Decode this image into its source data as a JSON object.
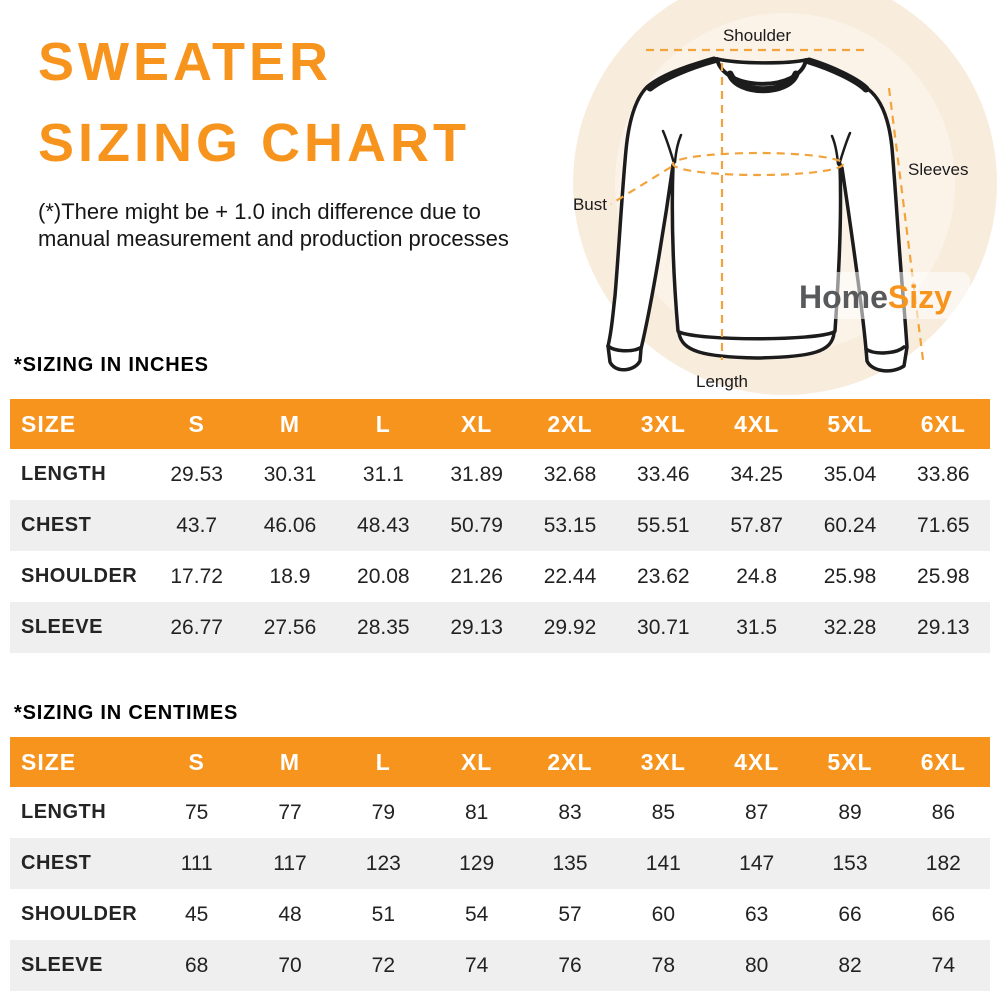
{
  "header": {
    "title_line1": "SWEATER",
    "title_line2": "SIZING CHART",
    "disclaimer_line1": "(*)There might be + 1.0 inch difference due to",
    "disclaimer_line2": "manual measurement and production processes"
  },
  "diagram": {
    "labels": {
      "shoulder": "Shoulder",
      "sleeves": "Sleeves",
      "bust": "Bust",
      "length": "Length"
    },
    "logo": {
      "home": "Home",
      "sizy": "Sizy"
    }
  },
  "colors": {
    "accent_orange": "#F7941D",
    "dashed_line_orange": "#F2A43C",
    "row_alternate_gray": "#EFEFEF",
    "logo_gray": "#58595B",
    "circle_outer_peach": "#F8ECDD",
    "circle_inner_peach": "#FBF2E8",
    "text_dark": "#1f1f1f"
  },
  "tables": [
    {
      "section_title": "*SIZING IN INCHES",
      "columns": [
        "SIZE",
        "S",
        "M",
        "L",
        "XL",
        "2XL",
        "3XL",
        "4XL",
        "5XL",
        "6XL"
      ],
      "rows": [
        {
          "label": "LENGTH",
          "values": [
            "29.53",
            "30.31",
            "31.1",
            "31.89",
            "32.68",
            "33.46",
            "34.25",
            "35.04",
            "33.86"
          ]
        },
        {
          "label": "CHEST",
          "values": [
            "43.7",
            "46.06",
            "48.43",
            "50.79",
            "53.15",
            "55.51",
            "57.87",
            "60.24",
            "71.65"
          ]
        },
        {
          "label": "SHOULDER",
          "values": [
            "17.72",
            "18.9",
            "20.08",
            "21.26",
            "22.44",
            "23.62",
            "24.8",
            "25.98",
            "25.98"
          ]
        },
        {
          "label": "SLEEVE",
          "values": [
            "26.77",
            "27.56",
            "28.35",
            "29.13",
            "29.92",
            "30.71",
            "31.5",
            "32.28",
            "29.13"
          ]
        }
      ]
    },
    {
      "section_title": "*SIZING IN CENTIMES",
      "columns": [
        "SIZE",
        "S",
        "M",
        "L",
        "XL",
        "2XL",
        "3XL",
        "4XL",
        "5XL",
        "6XL"
      ],
      "rows": [
        {
          "label": "LENGTH",
          "values": [
            "75",
            "77",
            "79",
            "81",
            "83",
            "85",
            "87",
            "89",
            "86"
          ]
        },
        {
          "label": "CHEST",
          "values": [
            "111",
            "117",
            "123",
            "129",
            "135",
            "141",
            "147",
            "153",
            "182"
          ]
        },
        {
          "label": "SHOULDER",
          "values": [
            "45",
            "48",
            "51",
            "54",
            "57",
            "60",
            "63",
            "66",
            "66"
          ]
        },
        {
          "label": "SLEEVE",
          "values": [
            "68",
            "70",
            "72",
            "74",
            "76",
            "78",
            "80",
            "82",
            "74"
          ]
        }
      ]
    }
  ]
}
